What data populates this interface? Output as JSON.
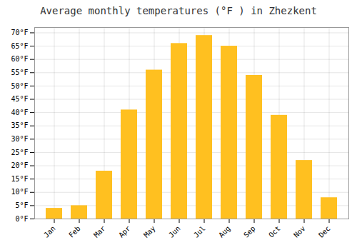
{
  "chart_data": {
    "type": "bar",
    "title": "Average monthly temperatures (°F ) in Zhezkent",
    "categories": [
      "Jan",
      "Feb",
      "Mar",
      "Apr",
      "May",
      "Jun",
      "Jul",
      "Aug",
      "Sep",
      "Oct",
      "Nov",
      "Dec"
    ],
    "values": [
      4,
      5,
      18,
      41,
      56,
      66,
      69,
      65,
      54,
      39,
      22,
      8
    ],
    "color": "#FFC020",
    "ylim": [
      0,
      72
    ],
    "yticks": [
      {
        "value": 0,
        "label": "0°F"
      },
      {
        "value": 5,
        "label": "5°F"
      },
      {
        "value": 10,
        "label": "10°F"
      },
      {
        "value": 15,
        "label": "15°F"
      },
      {
        "value": 20,
        "label": "20°F"
      },
      {
        "value": 25,
        "label": "25°F"
      },
      {
        "value": 30,
        "label": "30°F"
      },
      {
        "value": 35,
        "label": "35°F"
      },
      {
        "value": 40,
        "label": "40°F"
      },
      {
        "value": 45,
        "label": "45°F"
      },
      {
        "value": 50,
        "label": "50°F"
      },
      {
        "value": 55,
        "label": "55°F"
      },
      {
        "value": 60,
        "label": "60°F"
      },
      {
        "value": 65,
        "label": "65°F"
      },
      {
        "value": 70,
        "label": "70°F"
      }
    ],
    "grid": true
  }
}
